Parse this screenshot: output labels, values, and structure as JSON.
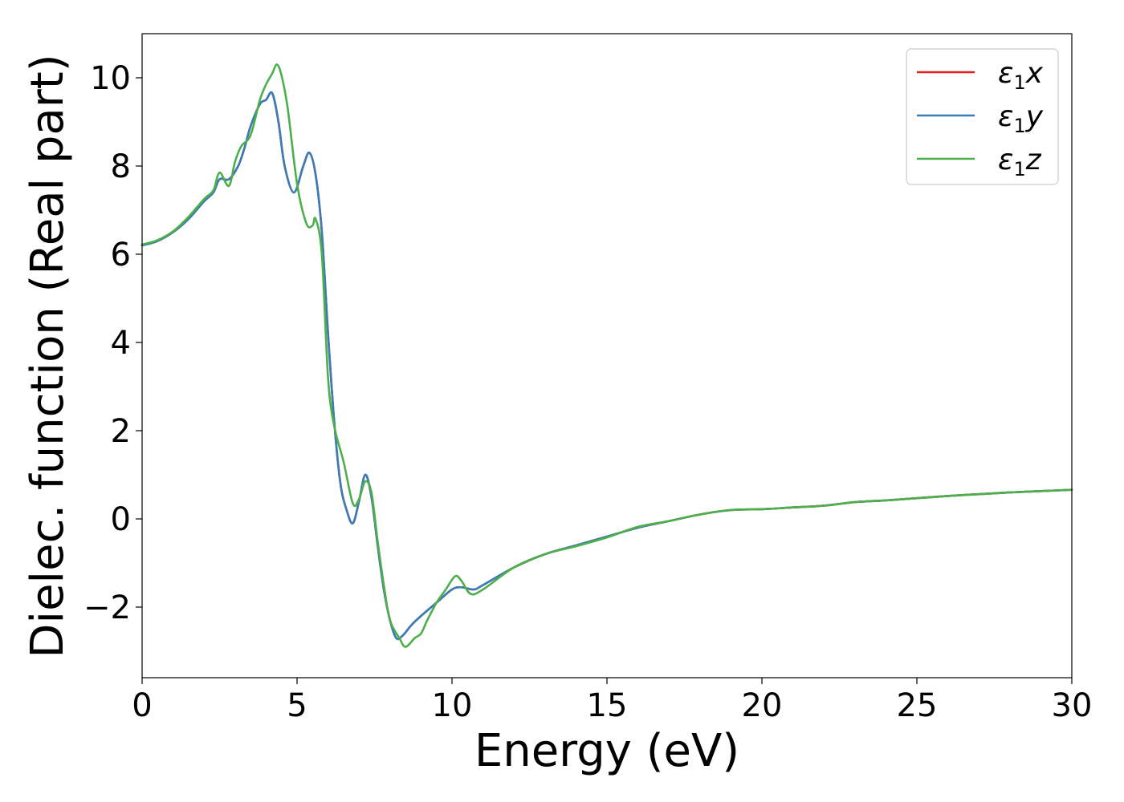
{
  "chart_data": {
    "type": "line",
    "title": "",
    "xlabel": "Energy (eV)",
    "ylabel": "Dielec. function (Real part)",
    "xlim": [
      0,
      30
    ],
    "ylim": [
      -3.6,
      11.0
    ],
    "xticks": [
      0,
      5,
      10,
      15,
      20,
      25,
      30
    ],
    "yticks": [
      -2,
      0,
      2,
      4,
      6,
      8,
      10
    ],
    "xtick_labels": [
      "0",
      "5",
      "10",
      "15",
      "20",
      "25",
      "30"
    ],
    "ytick_labels": [
      "−2",
      "0",
      "2",
      "4",
      "6",
      "8",
      "10"
    ],
    "grid": false,
    "legend_position": "top-right",
    "series": [
      {
        "name": "ε₁x",
        "legend": {
          "base": "ε",
          "sub": "1",
          "var": "x"
        },
        "color": "#e41a1c",
        "x": [
          0,
          0.5,
          1.0,
          1.5,
          2.0,
          2.3,
          2.5,
          2.8,
          3.1,
          3.3,
          3.5,
          3.8,
          4.0,
          4.2,
          4.4,
          4.6,
          4.9,
          5.2,
          5.4,
          5.6,
          5.8,
          6.0,
          6.2,
          6.4,
          6.6,
          6.8,
          7.0,
          7.2,
          7.4,
          7.6,
          7.8,
          8.0,
          8.2,
          8.4,
          8.7,
          9.0,
          9.5,
          10.0,
          10.3,
          10.7,
          11.0,
          12.0,
          13.0,
          14.0,
          15.0,
          16.0,
          17.0,
          18.0,
          19.0,
          20.0,
          21.0,
          22.0,
          23.0,
          24.0,
          25.0,
          26.0,
          27.0,
          28.0,
          29.0,
          30.0
        ],
        "y": [
          6.2,
          6.3,
          6.5,
          6.8,
          7.2,
          7.4,
          7.7,
          7.7,
          8.0,
          8.4,
          8.9,
          9.4,
          9.5,
          9.65,
          9.0,
          8.0,
          7.4,
          8.0,
          8.3,
          7.8,
          6.5,
          4.2,
          2.2,
          0.8,
          0.2,
          -0.1,
          0.4,
          1.0,
          0.5,
          -0.6,
          -1.6,
          -2.3,
          -2.7,
          -2.65,
          -2.4,
          -2.2,
          -1.9,
          -1.6,
          -1.55,
          -1.6,
          -1.5,
          -1.1,
          -0.8,
          -0.6,
          -0.4,
          -0.2,
          -0.05,
          0.1,
          0.2,
          0.22,
          0.26,
          0.3,
          0.38,
          0.42,
          0.47,
          0.52,
          0.56,
          0.6,
          0.63,
          0.66
        ]
      },
      {
        "name": "ε₁y",
        "legend": {
          "base": "ε",
          "sub": "1",
          "var": "y"
        },
        "color": "#377eb8",
        "x": [
          0,
          0.5,
          1.0,
          1.5,
          2.0,
          2.3,
          2.5,
          2.8,
          3.1,
          3.3,
          3.5,
          3.8,
          4.0,
          4.2,
          4.4,
          4.6,
          4.9,
          5.2,
          5.4,
          5.6,
          5.8,
          6.0,
          6.2,
          6.4,
          6.6,
          6.8,
          7.0,
          7.2,
          7.4,
          7.6,
          7.8,
          8.0,
          8.2,
          8.4,
          8.7,
          9.0,
          9.5,
          10.0,
          10.3,
          10.7,
          11.0,
          12.0,
          13.0,
          14.0,
          15.0,
          16.0,
          17.0,
          18.0,
          19.0,
          20.0,
          21.0,
          22.0,
          23.0,
          24.0,
          25.0,
          26.0,
          27.0,
          28.0,
          29.0,
          30.0
        ],
        "y": [
          6.2,
          6.3,
          6.5,
          6.8,
          7.2,
          7.4,
          7.7,
          7.7,
          8.0,
          8.4,
          8.9,
          9.4,
          9.5,
          9.65,
          9.0,
          8.0,
          7.4,
          8.0,
          8.3,
          7.8,
          6.5,
          4.2,
          2.2,
          0.8,
          0.2,
          -0.1,
          0.4,
          1.0,
          0.5,
          -0.6,
          -1.6,
          -2.3,
          -2.7,
          -2.65,
          -2.4,
          -2.2,
          -1.9,
          -1.6,
          -1.55,
          -1.6,
          -1.5,
          -1.1,
          -0.8,
          -0.6,
          -0.4,
          -0.2,
          -0.05,
          0.1,
          0.2,
          0.22,
          0.26,
          0.3,
          0.38,
          0.42,
          0.47,
          0.52,
          0.56,
          0.6,
          0.63,
          0.66
        ]
      },
      {
        "name": "ε₁z",
        "legend": {
          "base": "ε",
          "sub": "1",
          "var": "z"
        },
        "color": "#4daf4a",
        "x": [
          0,
          0.5,
          1.0,
          1.5,
          2.0,
          2.3,
          2.5,
          2.8,
          3.0,
          3.2,
          3.5,
          3.8,
          4.0,
          4.2,
          4.35,
          4.5,
          4.7,
          5.0,
          5.3,
          5.5,
          5.6,
          5.8,
          6.0,
          6.2,
          6.5,
          6.8,
          7.0,
          7.2,
          7.4,
          7.6,
          7.8,
          8.0,
          8.3,
          8.5,
          8.8,
          9.0,
          9.2,
          9.5,
          9.8,
          10.1,
          10.3,
          10.6,
          11.0,
          12.0,
          13.0,
          14.0,
          15.0,
          16.0,
          17.0,
          18.0,
          19.0,
          20.0,
          21.0,
          22.0,
          23.0,
          24.0,
          25.0,
          26.0,
          27.0,
          28.0,
          29.0,
          30.0
        ],
        "y": [
          6.22,
          6.32,
          6.52,
          6.85,
          7.25,
          7.45,
          7.85,
          7.55,
          8.1,
          8.45,
          8.7,
          9.5,
          9.85,
          10.1,
          10.3,
          10.05,
          9.3,
          7.6,
          6.7,
          6.65,
          6.8,
          6.0,
          3.2,
          2.1,
          1.3,
          0.35,
          0.45,
          0.85,
          0.6,
          -0.5,
          -1.5,
          -2.3,
          -2.7,
          -2.9,
          -2.7,
          -2.6,
          -2.3,
          -1.9,
          -1.6,
          -1.3,
          -1.4,
          -1.7,
          -1.6,
          -1.1,
          -0.8,
          -0.62,
          -0.42,
          -0.18,
          -0.05,
          0.1,
          0.2,
          0.22,
          0.26,
          0.3,
          0.38,
          0.42,
          0.47,
          0.52,
          0.56,
          0.6,
          0.63,
          0.66
        ]
      }
    ]
  }
}
